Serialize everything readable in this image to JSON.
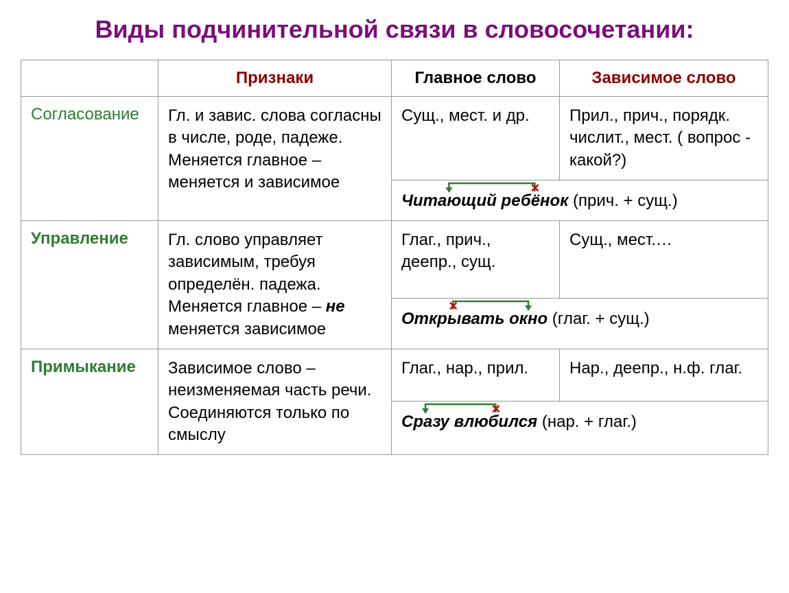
{
  "title": "Виды подчинительной связи в словосочетании:",
  "title_color": "#7a0f7a",
  "title_fontsize": 36,
  "headers": {
    "signs": "Признаки",
    "main": "Главное слово",
    "dep": "Зависимое слово",
    "signs_color": "#8b0000",
    "main_color": "#000000",
    "dep_color": "#8b0000"
  },
  "type_colors": {
    "plain": "#2e7d32",
    "bold": "#2e7d32"
  },
  "arrow_color": "#2e7d32",
  "x_color": "#c00000",
  "rows": [
    {
      "type": "Согласование",
      "type_bold": false,
      "signs": "Гл. и завис. слова согласны в числе, роде, падеже.\nМеняется главное – меняется и зависимое",
      "main": "Сущ., мест. и др.",
      "dep": "Прил., прич., порядк. числит., мест. ( вопрос - какой?)",
      "example": {
        "word1": "Читающий",
        "word2": "ребёнок",
        "parts": "(прич. + сущ.)",
        "x_on": "word2",
        "arrow_from": "word2",
        "arrow_to": "word1"
      }
    },
    {
      "type": "Управление",
      "type_bold": true,
      "signs_html": "Гл. слово управляет зависимым, требуя определён. падежа.\nМеняется главное – <i><b>не</b></i> меняется зависимое",
      "main": "Глаг., прич., деепр., сущ.",
      "dep": "Сущ., мест.…",
      "example": {
        "word1": "Открывать",
        "word2": "окно",
        "parts": "(глаг. + сущ.)",
        "x_on": "word1",
        "arrow_from": "word1",
        "arrow_to": "word2"
      }
    },
    {
      "type": "Примыкание",
      "type_bold": true,
      "signs": "Зависимое слово – неизменяемая часть речи.\nСоединяются только по смыслу",
      "main": "Глаг., нар., прил.",
      "dep": "Нар., деепр., н.ф. глаг.",
      "example": {
        "word1": "Сразу",
        "word2": "влюбился",
        "parts": "(нар. + глаг.)",
        "x_on": "word2",
        "arrow_from": "word2",
        "arrow_to": "word1"
      }
    }
  ]
}
